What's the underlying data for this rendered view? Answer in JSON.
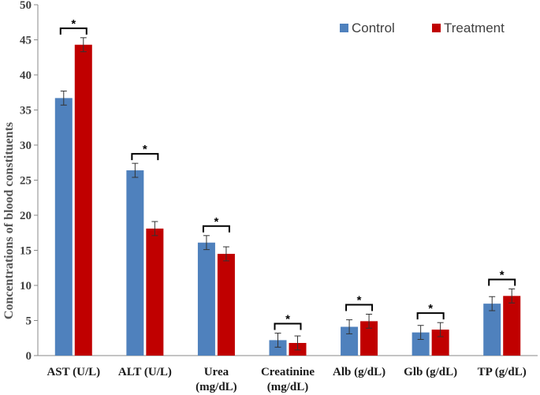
{
  "chart_data": {
    "type": "bar",
    "title": "",
    "xlabel": "",
    "ylabel": "Concentrations of blood constituents",
    "ylim": [
      0,
      50
    ],
    "yticks": [
      0,
      5,
      10,
      15,
      20,
      25,
      30,
      35,
      40,
      45,
      50
    ],
    "grid": false,
    "legend_position": "top-right",
    "categories": [
      [
        "AST (U/L)"
      ],
      [
        "ALT (U/L)"
      ],
      [
        "Urea",
        "(mg/dL)"
      ],
      [
        "Creatinine",
        "(mg/dL)"
      ],
      [
        "Alb (g/dL)"
      ],
      [
        "Glb (g/dL)"
      ],
      [
        "TP (g/dL)"
      ]
    ],
    "series": [
      {
        "name": "Control",
        "color": "#4f81bd",
        "values": [
          36.7,
          26.4,
          16.1,
          2.2,
          4.1,
          3.3,
          7.4
        ],
        "errors": [
          1.0,
          1.0,
          1.0,
          1.0,
          1.0,
          1.0,
          1.0
        ]
      },
      {
        "name": "Treatment",
        "color": "#c00000",
        "values": [
          44.3,
          18.1,
          14.5,
          1.8,
          4.9,
          3.7,
          8.5
        ],
        "errors": [
          1.0,
          1.0,
          1.0,
          1.0,
          1.0,
          1.0,
          1.0
        ]
      }
    ],
    "annotations": [
      "*",
      "*",
      "*",
      "*",
      "*",
      "*",
      "*"
    ]
  }
}
